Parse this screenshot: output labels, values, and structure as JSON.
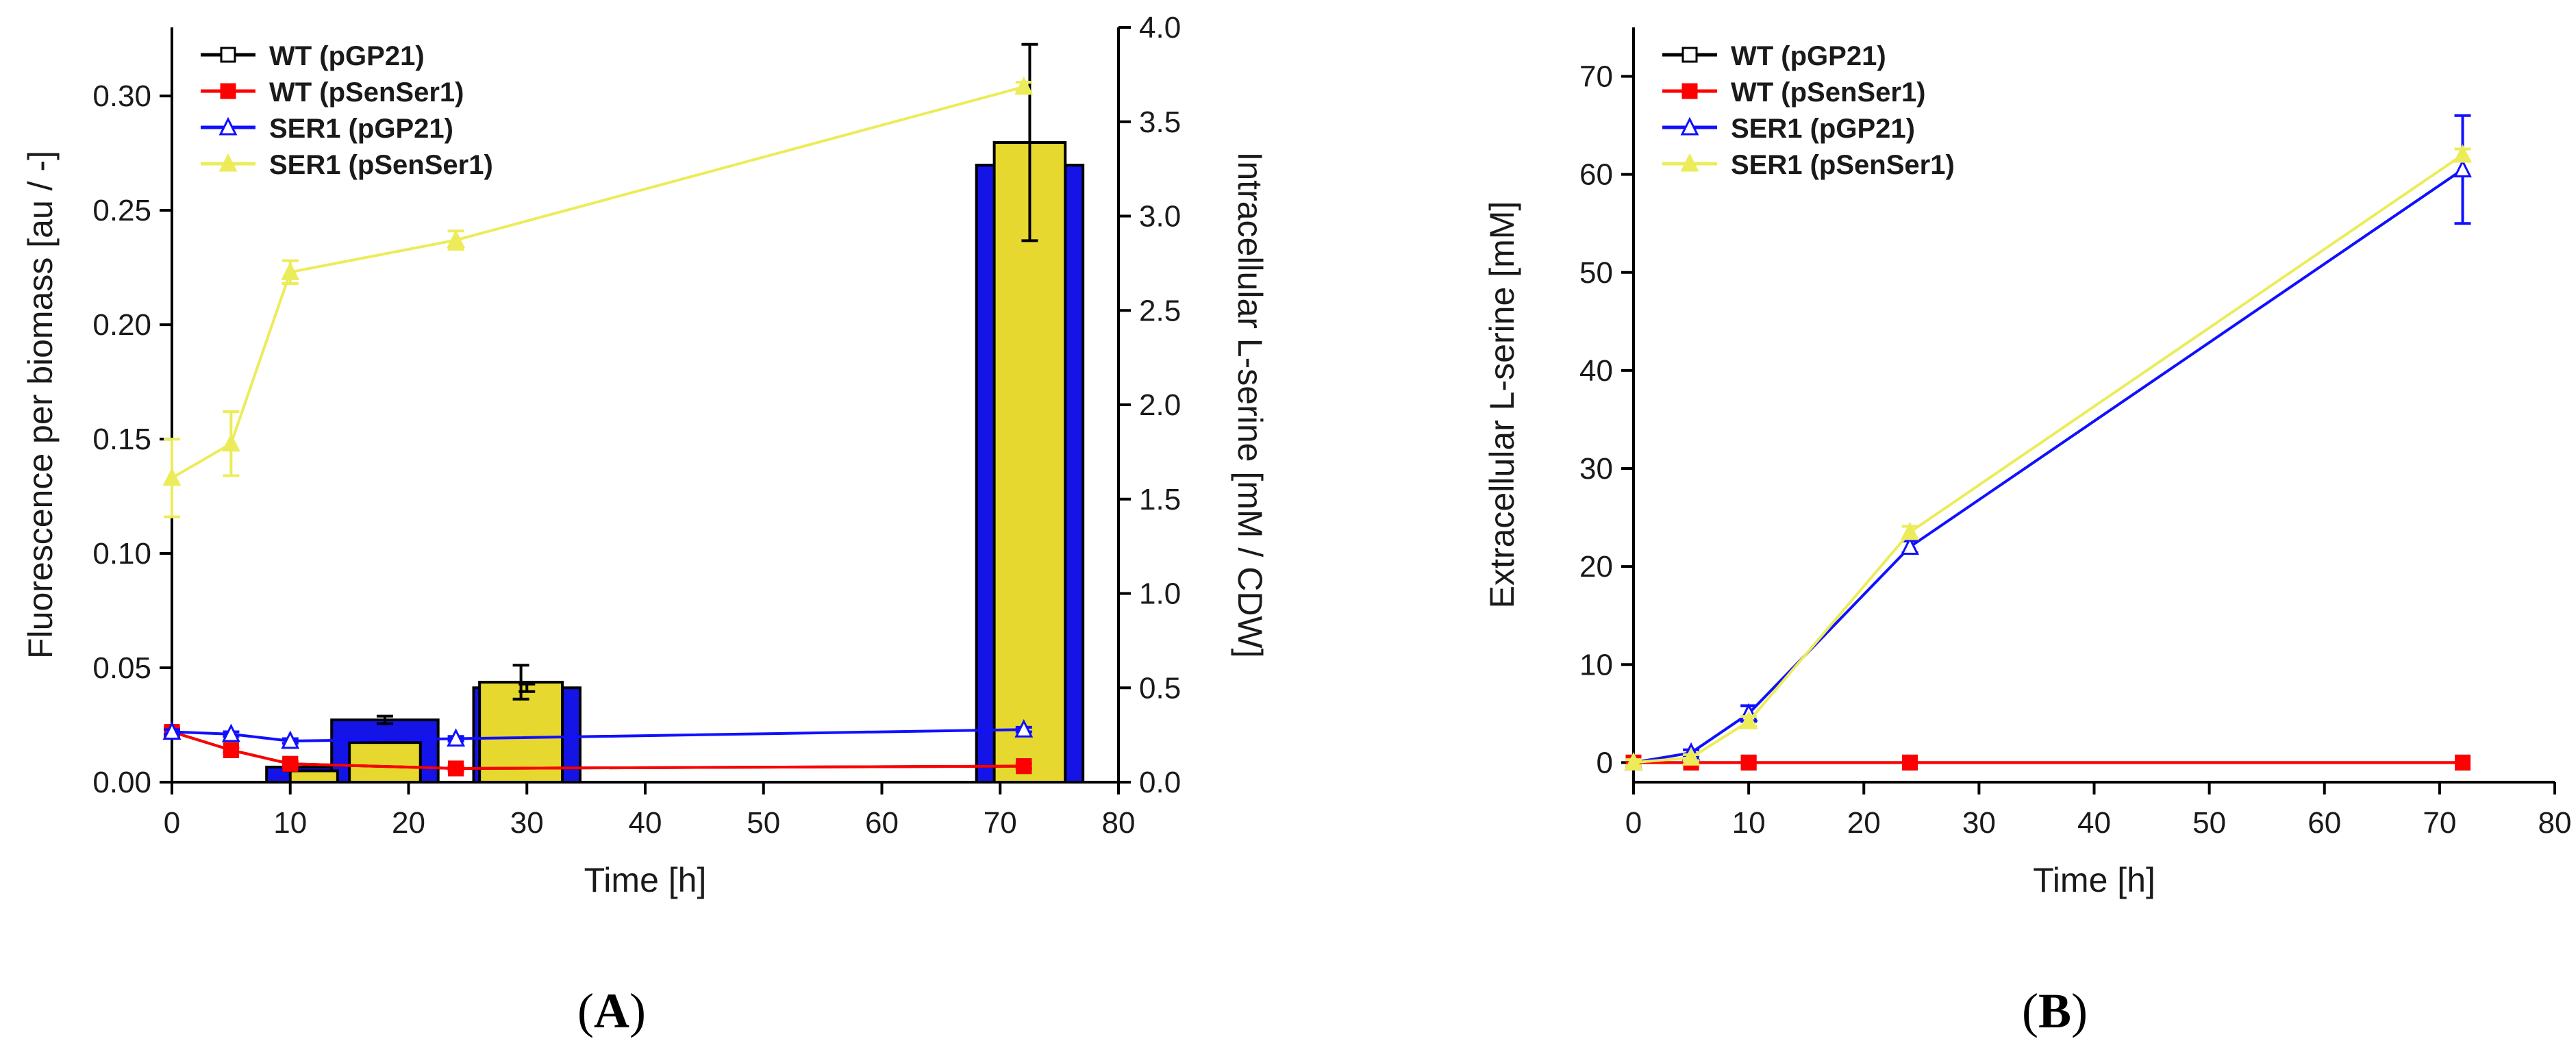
{
  "chart_data": [
    {
      "panel": "A",
      "type": "line",
      "xlabel": "Time [h]",
      "ylabel": "Fluorescence per biomass [au / -]",
      "ylabel_right": "Intracellular L-serine [mM / CDW]",
      "xlim": [
        0,
        80
      ],
      "ylim": [
        0,
        0.33
      ],
      "ylim_right": [
        0,
        4.0
      ],
      "x_ticks": [
        "0",
        "10",
        "20",
        "30",
        "40",
        "50",
        "60",
        "70",
        "80"
      ],
      "y_ticks": [
        "0.00",
        "0.05",
        "0.10",
        "0.15",
        "0.20",
        "0.25",
        "0.30"
      ],
      "y_ticks_right": [
        "0.0",
        "0.5",
        "1.0",
        "1.5",
        "2.0",
        "2.5",
        "3.0",
        "3.5",
        "4.0"
      ],
      "legend_position": "top-left",
      "series": [
        {
          "name": "WT (pGP21)",
          "marker": "open-square",
          "color": "#000000",
          "x": [
            0,
            5,
            10,
            24,
            72
          ],
          "y": [
            0.022,
            0.014,
            0.008,
            0.006,
            0.007
          ],
          "err": [
            0,
            0,
            0,
            0,
            0
          ]
        },
        {
          "name": "WT (pSenSer1)",
          "marker": "square",
          "color": "#ff0000",
          "x": [
            0,
            5,
            10,
            24,
            72
          ],
          "y": [
            0.022,
            0.014,
            0.008,
            0.006,
            0.007
          ],
          "err": [
            0.002,
            0.001,
            0.001,
            0.001,
            0.001
          ]
        },
        {
          "name": "SER1 (pGP21)",
          "marker": "open-triangle",
          "color": "#1010ff",
          "x": [
            0,
            5,
            10,
            24,
            72
          ],
          "y": [
            0.022,
            0.021,
            0.018,
            0.019,
            0.023
          ],
          "err": [
            0.001,
            0.001,
            0.001,
            0.001,
            0.001
          ]
        },
        {
          "name": "SER1 (pSenSer1)",
          "marker": "triangle",
          "color": "#ecec5a",
          "x": [
            0,
            5,
            10,
            24,
            72
          ],
          "y": [
            0.133,
            0.148,
            0.223,
            0.237,
            0.304
          ],
          "err": [
            0.017,
            0.014,
            0.005,
            0.004,
            0.002
          ]
        }
      ],
      "bars": [
        {
          "name": "SER1 (pGP21)",
          "color": "#1414e6",
          "x_center": [
            11,
            18,
            30,
            72.5
          ],
          "width": [
            6,
            9,
            9,
            9
          ],
          "values": [
            0.08,
            0.33,
            0.5,
            3.27
          ],
          "err": [
            0,
            0.02,
            0.02,
            0
          ]
        },
        {
          "name": "SER1 (pSenSer1)",
          "color": "#e6d82e",
          "x_center": [
            12,
            18,
            29.5,
            72.5
          ],
          "width": [
            4,
            6,
            7,
            6
          ],
          "values": [
            0.06,
            0.21,
            0.53,
            3.39
          ],
          "err": [
            0,
            0,
            0.09,
            0.52
          ]
        }
      ],
      "panel_label": "A"
    },
    {
      "panel": "B",
      "type": "line",
      "xlabel": "Time [h]",
      "ylabel": "Extracellular L-serine [mM]",
      "xlim": [
        0,
        80
      ],
      "ylim": [
        -2,
        75
      ],
      "x_ticks": [
        "0",
        "10",
        "20",
        "30",
        "40",
        "50",
        "60",
        "70",
        "80"
      ],
      "y_ticks": [
        "0",
        "10",
        "20",
        "30",
        "40",
        "50",
        "60",
        "70"
      ],
      "legend_position": "top-left",
      "series": [
        {
          "name": "WT (pGP21)",
          "marker": "open-square",
          "color": "#000000",
          "x": [
            0,
            5,
            10,
            24,
            72
          ],
          "y": [
            0,
            0,
            0,
            0,
            0
          ],
          "err": [
            0,
            0,
            0,
            0,
            0
          ]
        },
        {
          "name": "WT (pSenSer1)",
          "marker": "square",
          "color": "#ff0000",
          "x": [
            0,
            5,
            10,
            24,
            72
          ],
          "y": [
            0,
            0,
            0,
            0,
            0
          ],
          "err": [
            0,
            0,
            0,
            0,
            0
          ]
        },
        {
          "name": "SER1 (pGP21)",
          "marker": "open-triangle",
          "color": "#1010ff",
          "x": [
            0,
            5,
            10,
            24,
            72
          ],
          "y": [
            0,
            1,
            5,
            22,
            60.5
          ],
          "err": [
            0.3,
            0.3,
            0.8,
            0.6,
            5.5
          ]
        },
        {
          "name": "SER1 (pSenSer1)",
          "marker": "triangle",
          "color": "#ecec5a",
          "x": [
            0,
            5,
            10,
            24,
            72
          ],
          "y": [
            0,
            0.5,
            4.2,
            23.5,
            62
          ],
          "err": [
            0.3,
            0.3,
            0.5,
            0.6,
            0.6
          ]
        }
      ],
      "panel_label": "B"
    }
  ]
}
